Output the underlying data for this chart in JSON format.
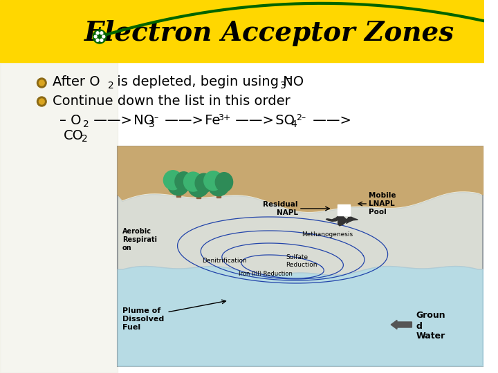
{
  "title": "Electron Acceptor Zones",
  "title_fontsize": 28,
  "title_color": "#000000",
  "title_bg_color": "#FFD700",
  "bg_color": "#FFFFFF",
  "diagram_bg": "#F5F0DC",
  "water_color": "#ADD8E6",
  "label_aerobic": "Aerobic\nRespirati\non",
  "label_denitrification": "Denitrification",
  "label_iron": "Iron (III) Reduction",
  "label_sulfate": "Sulfate\nReduction",
  "label_methano": "Methanogenesis",
  "label_residual": "Residual\nNAPL",
  "label_mobile": "Mobile\nLNAPL\nPool",
  "label_plume": "Plume of\nDissolved\nFuel",
  "label_ground": "Groun\nd\nWater",
  "bullet_color_dark": "#8B6914",
  "bullet_color_light": "#DAA520",
  "soil_color": "#C8A870",
  "soil_dark": "#B8955A",
  "tree_trunk": "#8B5E3C",
  "tree_foliage1": "#2E8B57",
  "tree_foliage2": "#3CB371",
  "napl_color": "#333333",
  "plume_color": "#2244AA",
  "gw_arrow_color": "#555555"
}
